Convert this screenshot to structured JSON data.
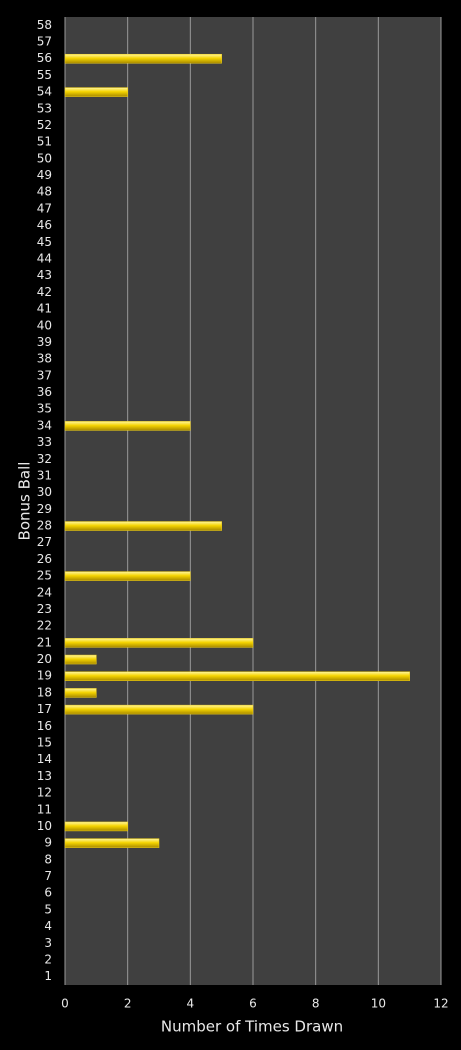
{
  "chart_data": {
    "type": "hbar",
    "ylabel": "Bonus Ball",
    "xlabel": "Number of Times Drawn",
    "categories": [
      "1",
      "2",
      "3",
      "4",
      "5",
      "6",
      "7",
      "8",
      "9",
      "10",
      "11",
      "12",
      "13",
      "14",
      "15",
      "16",
      "17",
      "18",
      "19",
      "20",
      "21",
      "22",
      "23",
      "24",
      "25",
      "26",
      "27",
      "28",
      "29",
      "30",
      "31",
      "32",
      "33",
      "34",
      "35",
      "36",
      "37",
      "38",
      "39",
      "40",
      "41",
      "42",
      "43",
      "44",
      "45",
      "46",
      "47",
      "48",
      "49",
      "50",
      "51",
      "52",
      "53",
      "54",
      "55",
      "56",
      "57",
      "58"
    ],
    "values": [
      0,
      0,
      0,
      0,
      0,
      0,
      0,
      0,
      3,
      2,
      0,
      0,
      0,
      0,
      0,
      0,
      6,
      1,
      11,
      1,
      6,
      0,
      0,
      0,
      4,
      0,
      0,
      5,
      0,
      0,
      0,
      0,
      0,
      4,
      0,
      0,
      0,
      0,
      0,
      0,
      0,
      0,
      0,
      0,
      0,
      0,
      0,
      0,
      0,
      0,
      0,
      0,
      0,
      2,
      0,
      5,
      0,
      0
    ],
    "color": "#f2d21a",
    "xlim": [
      0,
      12
    ],
    "xticks": [
      0,
      2,
      4,
      6,
      8,
      10,
      12
    ],
    "grid": true
  }
}
